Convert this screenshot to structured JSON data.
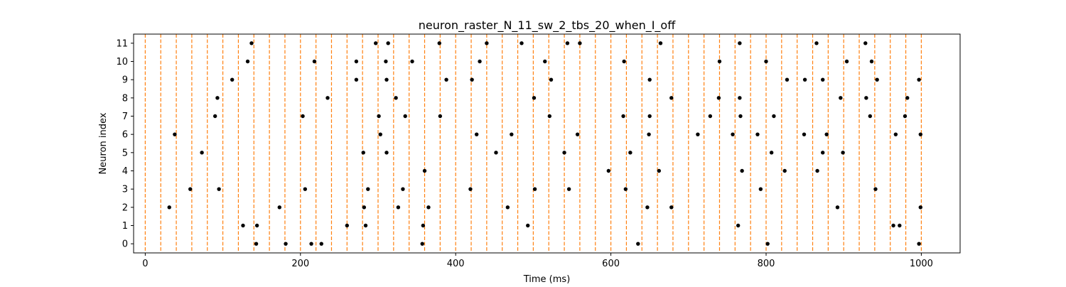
{
  "chart_data": {
    "type": "scatter",
    "title": "neuron_raster_N_11_sw_2_tbs_20_when_I_off",
    "xlabel": "Time (ms)",
    "ylabel": "Neuron index",
    "xlim": [
      -15,
      1050
    ],
    "ylim": [
      -0.5,
      11.5
    ],
    "xticks": [
      0,
      200,
      400,
      600,
      800,
      1000
    ],
    "xtick_labels": [
      "0",
      "200",
      "400",
      "600",
      "800",
      "1000"
    ],
    "yticks": [
      0,
      1,
      2,
      3,
      4,
      5,
      6,
      7,
      8,
      9,
      10,
      11
    ],
    "ytick_labels": [
      "0",
      "1",
      "2",
      "3",
      "4",
      "5",
      "6",
      "7",
      "8",
      "9",
      "10",
      "11"
    ],
    "grid": false,
    "legend": "none",
    "marker_color": "#000000",
    "vline_color": "#ff7f0e",
    "vlines": [
      0,
      20,
      40,
      60,
      80,
      100,
      120,
      140,
      160,
      180,
      200,
      220,
      240,
      260,
      280,
      300,
      320,
      340,
      360,
      380,
      400,
      420,
      440,
      460,
      480,
      500,
      520,
      540,
      560,
      580,
      600,
      620,
      640,
      660,
      680,
      700,
      720,
      740,
      760,
      780,
      800,
      820,
      840,
      860,
      880,
      900,
      920,
      940,
      960,
      980,
      1000
    ],
    "spikes": [
      {
        "neuron": 0,
        "times": [
          143,
          181,
          214,
          227,
          357,
          635,
          802,
          997
        ]
      },
      {
        "neuron": 1,
        "times": [
          126,
          144,
          260,
          284,
          358,
          493,
          764,
          964,
          972
        ]
      },
      {
        "neuron": 2,
        "times": [
          31,
          173,
          282,
          326,
          365,
          467,
          647,
          678,
          892,
          999
        ]
      },
      {
        "neuron": 3,
        "times": [
          58,
          95,
          206,
          287,
          332,
          419,
          502,
          546,
          619,
          793,
          941
        ]
      },
      {
        "neuron": 4,
        "times": [
          360,
          597,
          662,
          769,
          824,
          866
        ]
      },
      {
        "neuron": 5,
        "times": [
          73,
          281,
          311,
          452,
          540,
          625,
          807,
          873,
          899
        ]
      },
      {
        "neuron": 6,
        "times": [
          38,
          303,
          427,
          472,
          557,
          649,
          712,
          757,
          789,
          849,
          878,
          967,
          999
        ]
      },
      {
        "neuron": 7,
        "times": [
          90,
          203,
          301,
          335,
          380,
          521,
          616,
          650,
          728,
          767,
          810,
          934,
          979
        ]
      },
      {
        "neuron": 8,
        "times": [
          93,
          235,
          323,
          501,
          678,
          739,
          766,
          896,
          929,
          982
        ]
      },
      {
        "neuron": 9,
        "times": [
          112,
          272,
          311,
          388,
          421,
          523,
          650,
          827,
          850,
          873,
          943,
          997
        ]
      },
      {
        "neuron": 10,
        "times": [
          132,
          218,
          272,
          310,
          344,
          431,
          515,
          617,
          740,
          800,
          904,
          936
        ]
      },
      {
        "neuron": 11,
        "times": [
          137,
          297,
          313,
          379,
          440,
          485,
          544,
          560,
          664,
          766,
          865,
          928
        ]
      }
    ]
  }
}
